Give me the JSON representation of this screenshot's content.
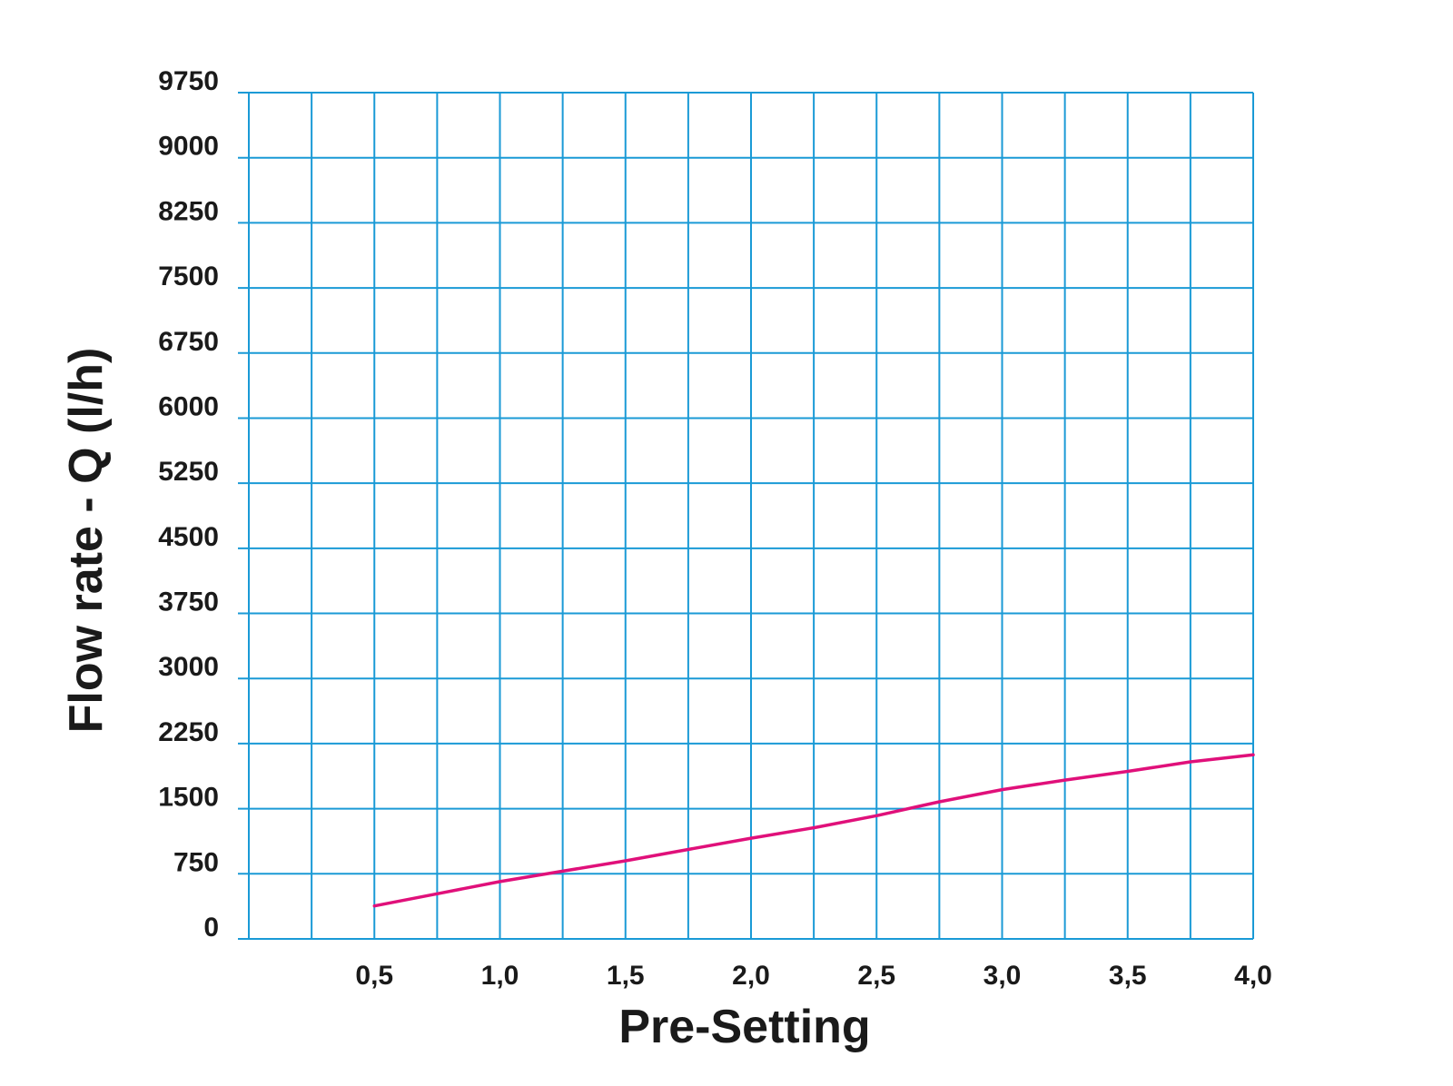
{
  "chart_data": {
    "type": "line",
    "title": "",
    "xlabel": "Pre-Setting",
    "ylabel": "Flow rate - Q (l/h)",
    "xlim": [
      0,
      4.0
    ],
    "ylim": [
      0,
      9750
    ],
    "grid": true,
    "x_ticks": [
      {
        "value": 0.5,
        "label": "0,5"
      },
      {
        "value": 1.0,
        "label": "1,0"
      },
      {
        "value": 1.5,
        "label": "1,5"
      },
      {
        "value": 2.0,
        "label": "2,0"
      },
      {
        "value": 2.5,
        "label": "2,5"
      },
      {
        "value": 3.0,
        "label": "3,0"
      },
      {
        "value": 3.5,
        "label": "3,5"
      },
      {
        "value": 4.0,
        "label": "4,0"
      }
    ],
    "y_ticks": [
      {
        "value": 0,
        "label": "0"
      },
      {
        "value": 750,
        "label": "750"
      },
      {
        "value": 1500,
        "label": "1500"
      },
      {
        "value": 2250,
        "label": "2250"
      },
      {
        "value": 3000,
        "label": "3000"
      },
      {
        "value": 3750,
        "label": "3750"
      },
      {
        "value": 4500,
        "label": "4500"
      },
      {
        "value": 5250,
        "label": "5250"
      },
      {
        "value": 6000,
        "label": "6000"
      },
      {
        "value": 6750,
        "label": "6750"
      },
      {
        "value": 7500,
        "label": "7500"
      },
      {
        "value": 8250,
        "label": "8250"
      },
      {
        "value": 9000,
        "label": "9000"
      },
      {
        "value": 9750,
        "label": "9750"
      }
    ],
    "x_grid_step": 0.25,
    "series": [
      {
        "color": "#e0107a",
        "x": [
          0.5,
          0.75,
          1.0,
          1.25,
          1.5,
          1.75,
          2.0,
          2.25,
          2.5,
          2.75,
          3.0,
          3.25,
          3.5,
          3.75,
          4.0
        ],
        "values": [
          380,
          520,
          660,
          780,
          900,
          1030,
          1160,
          1280,
          1420,
          1580,
          1720,
          1830,
          1930,
          2040,
          2120
        ]
      }
    ]
  }
}
